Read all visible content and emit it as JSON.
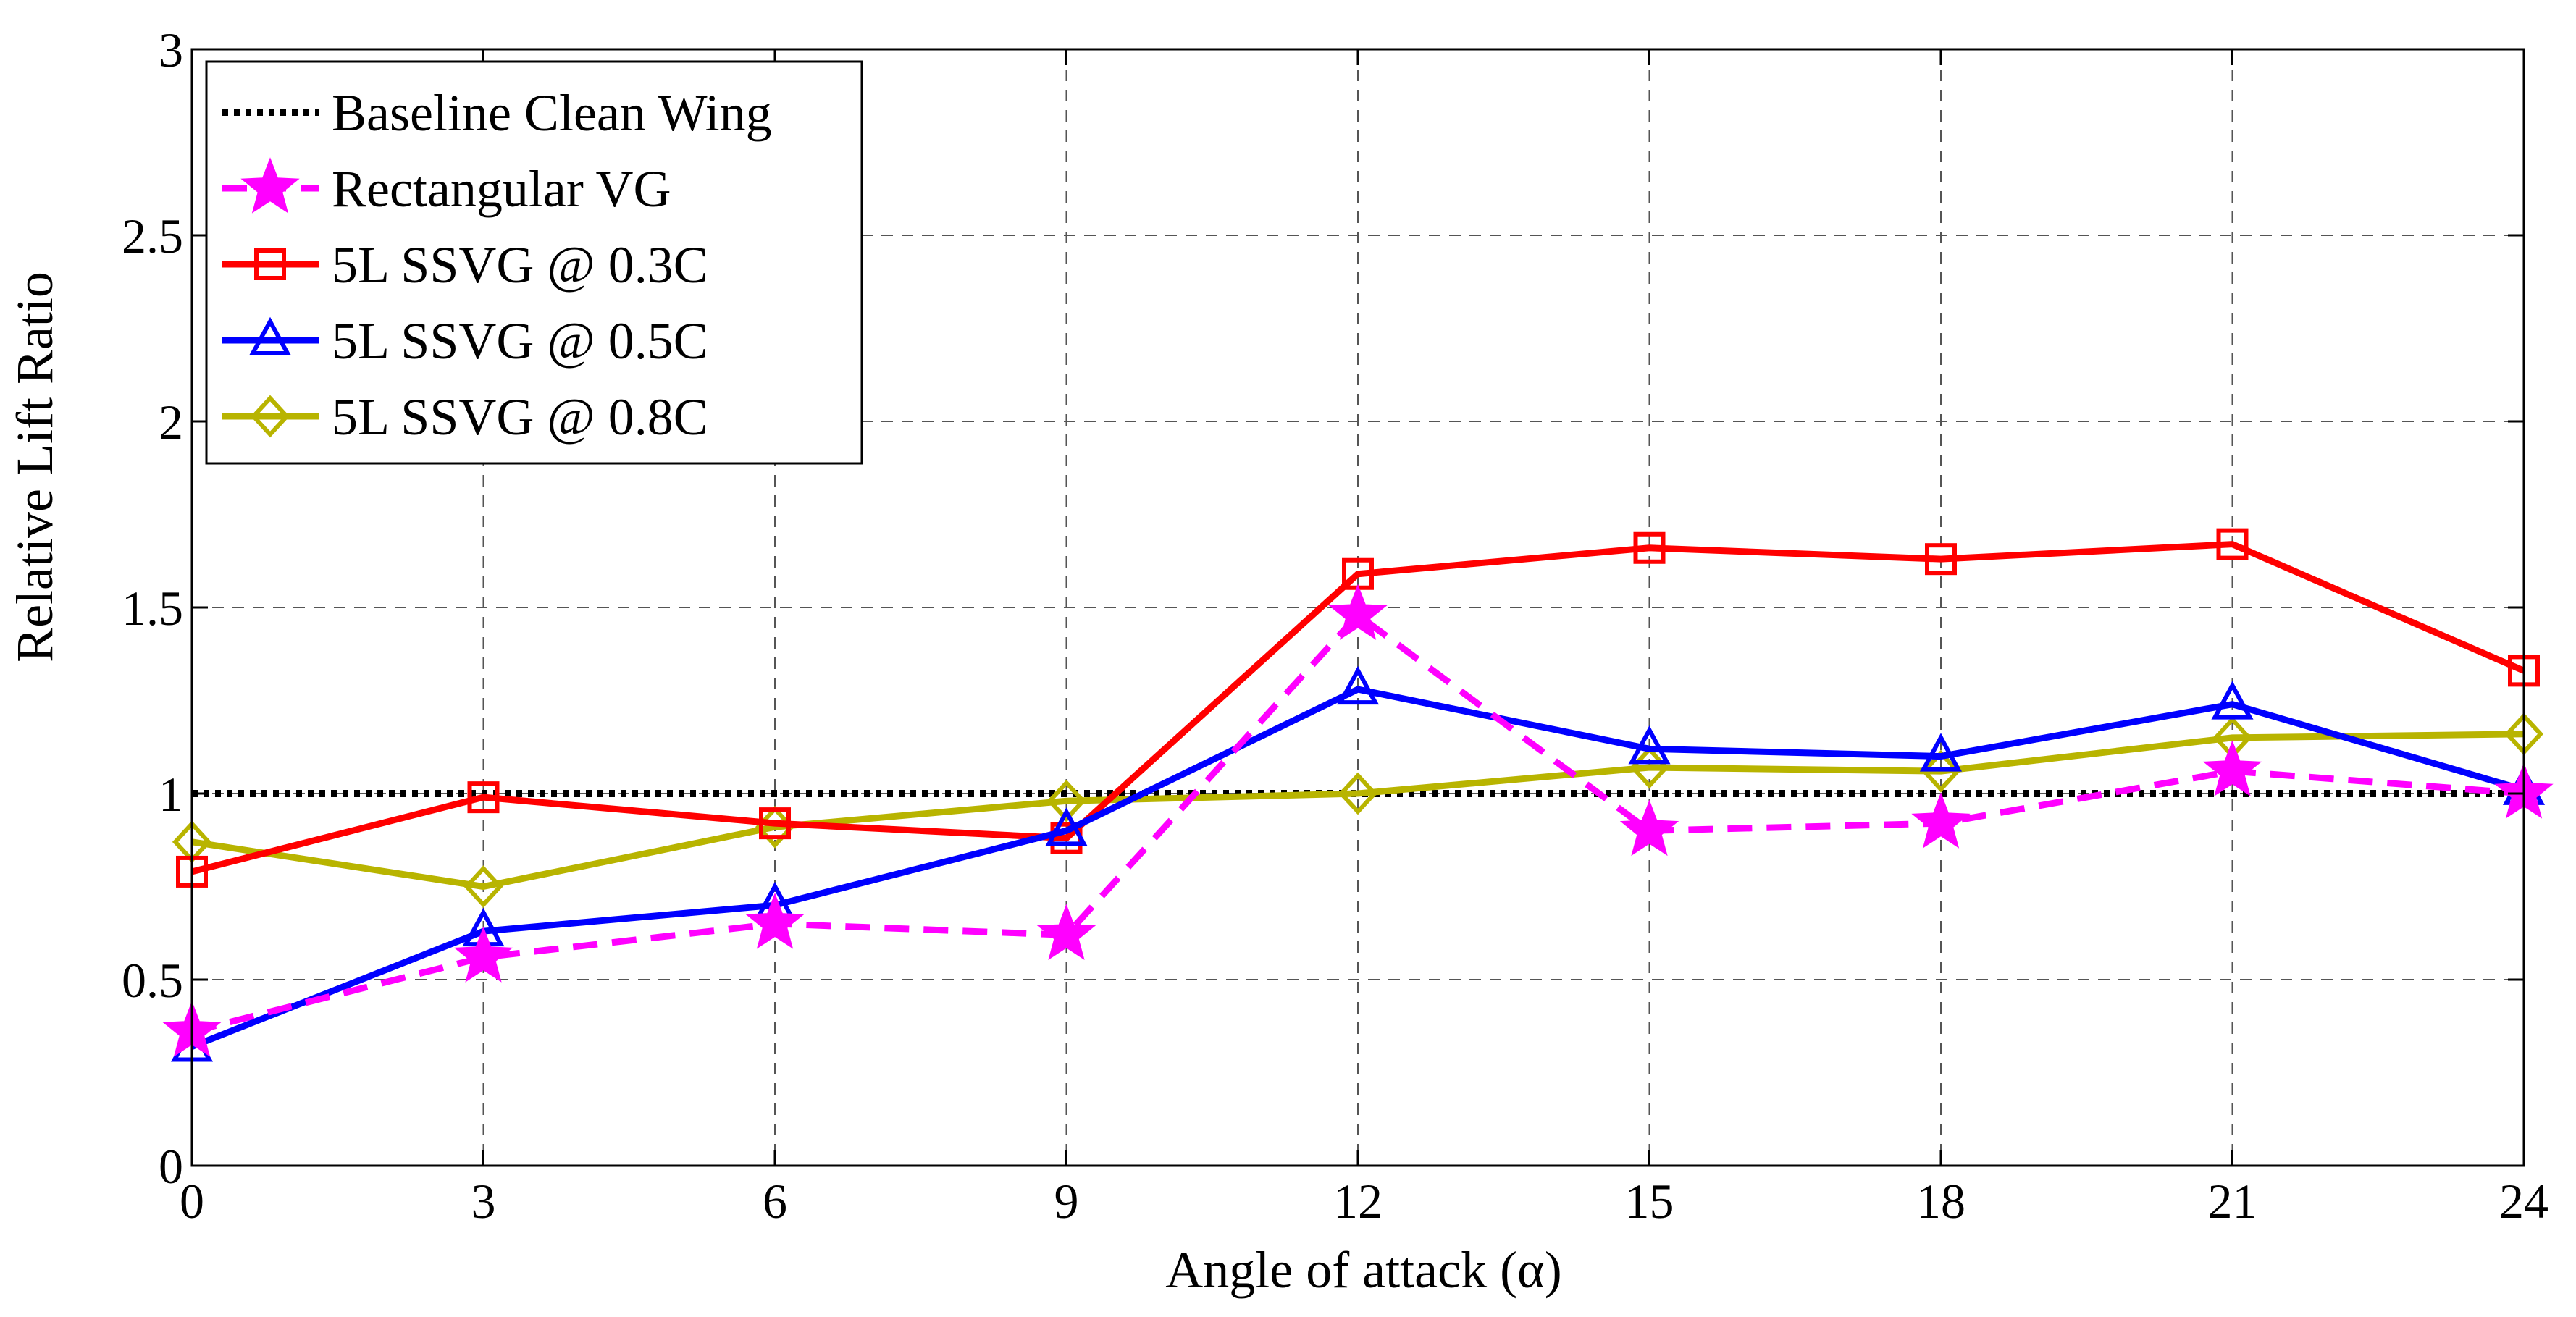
{
  "chart_data": {
    "type": "line",
    "title": "",
    "xlabel": "Angle of attack (α)",
    "ylabel": "Relative Lift Ratio",
    "x": [
      0,
      3,
      6,
      9,
      12,
      15,
      18,
      21,
      24
    ],
    "xlim": [
      0,
      24
    ],
    "ylim": [
      0,
      3
    ],
    "xticks": [
      "0",
      "3",
      "6",
      "9",
      "12",
      "15",
      "18",
      "21",
      "24"
    ],
    "yticks": [
      "0",
      "0.5",
      "1",
      "1.5",
      "2",
      "2.5",
      "3"
    ],
    "grid": true,
    "legend_position": "top-left",
    "series": [
      {
        "name": "Baseline Clean Wing",
        "color": "#000000",
        "line_style": "dotted",
        "marker": "none",
        "values": [
          1.0,
          1.0,
          1.0,
          1.0,
          1.0,
          1.0,
          1.0,
          1.0,
          1.0
        ]
      },
      {
        "name": "Rectangular VG",
        "color": "#ff00ff",
        "line_style": "dashed",
        "marker": "star",
        "values": [
          0.36,
          0.56,
          0.65,
          0.62,
          1.48,
          0.9,
          0.92,
          1.06,
          1.0
        ]
      },
      {
        "name": "5L SSVG @ 0.3C",
        "color": "#ff0000",
        "line_style": "solid",
        "marker": "square",
        "values": [
          0.79,
          0.99,
          0.92,
          0.88,
          1.59,
          1.66,
          1.63,
          1.67,
          1.33
        ]
      },
      {
        "name": "5L SSVG @ 0.5C",
        "color": "#0000ff",
        "line_style": "solid",
        "marker": "triangle",
        "values": [
          0.32,
          0.63,
          0.7,
          0.9,
          1.28,
          1.12,
          1.1,
          1.24,
          1.01
        ]
      },
      {
        "name": "5L SSVG @ 0.8C",
        "color": "#b8b400",
        "line_style": "solid",
        "marker": "diamond",
        "values": [
          0.87,
          0.75,
          0.91,
          0.98,
          1.0,
          1.07,
          1.06,
          1.15,
          1.16
        ]
      }
    ]
  }
}
